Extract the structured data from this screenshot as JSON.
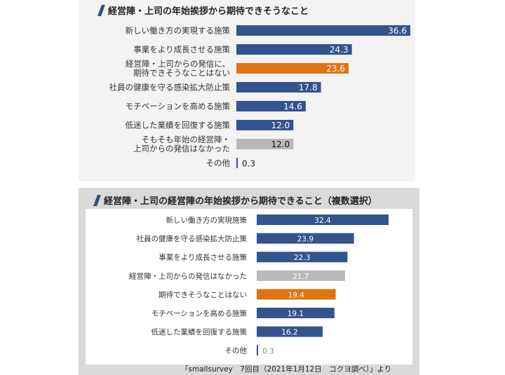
{
  "colors": {
    "blue": "#33548d",
    "orange": "#e07411",
    "gray": "#b9b9b9"
  },
  "chart_data": [
    {
      "type": "bar",
      "orientation": "horizontal",
      "title": "経営陣・上司の年始挨拶から期待できそうなこと",
      "categories": [
        [
          "新しい働き方の実現する施策"
        ],
        [
          "事業をより成長させる施策"
        ],
        [
          "経営陣・上司からの発信に、",
          "期待できそうなことはない"
        ],
        [
          "社員の健康を守る感染拡大防止策"
        ],
        [
          "モチベーションを高める施策"
        ],
        [
          "低迷した業績を回復する施策"
        ],
        [
          "そもそも年始の経営陣・",
          "上司からの発信はなかった"
        ],
        [
          "その他"
        ]
      ],
      "values": [
        36.6,
        24.3,
        23.6,
        17.8,
        14.6,
        12.0,
        12.0,
        0.3
      ],
      "value_labels": [
        "36.6",
        "24.3",
        "23.6",
        "17.8",
        "14.6",
        "12.0",
        "12.0",
        "0.3"
      ],
      "bar_colors": [
        "blue",
        "blue",
        "orange",
        "blue",
        "blue",
        "blue",
        "gray",
        "blue"
      ],
      "label_inside": [
        true,
        true,
        true,
        true,
        true,
        true,
        true,
        false
      ],
      "xlim": [
        0,
        40
      ]
    },
    {
      "type": "bar",
      "orientation": "horizontal",
      "title": "経営陣・上司の経営陣の年始挨拶から期待できること（複数選択）",
      "categories": [
        [
          "新しい働き方の実現施策"
        ],
        [
          "社員の健康を守る感染拡大防止策"
        ],
        [
          "事業をより成長させる施策"
        ],
        [
          "経営陣・上司からの発信はなかった"
        ],
        [
          "期待できそうなことはない"
        ],
        [
          "モチベーションを高める施策"
        ],
        [
          "低迷した業績を回復する施策"
        ],
        [
          "その他"
        ]
      ],
      "values": [
        32.4,
        23.9,
        22.3,
        21.7,
        19.4,
        19.1,
        16.2,
        0.3
      ],
      "value_labels": [
        "32.4",
        "23.9",
        "22.3",
        "21.7",
        "19.4",
        "19.1",
        "16.2",
        "0.3"
      ],
      "bar_colors": [
        "blue",
        "blue",
        "blue",
        "gray",
        "orange",
        "blue",
        "blue",
        "blue"
      ],
      "label_inside": [
        true,
        true,
        true,
        true,
        true,
        true,
        true,
        false
      ],
      "xlim": [
        0,
        40
      ]
    }
  ],
  "footer": "「smallsurvey　7回目（2021年1月12日　コクヨ調べ）」より"
}
